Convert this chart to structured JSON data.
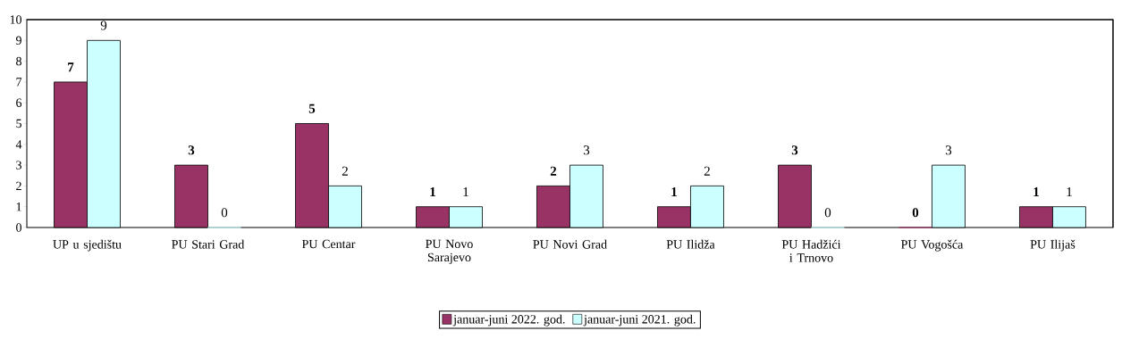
{
  "chart_data": {
    "type": "bar",
    "categories": [
      "UP u sjedištu",
      "PU Stari Grad",
      "PU Centar",
      "PU Novo Sarajevo",
      "PU Novi Grad",
      "PU Ilidža",
      "PU Hadžići i Trnovo",
      "PU Vogošća",
      "PU Ilijaš"
    ],
    "series": [
      {
        "name": "januar-juni 2022. god.",
        "color": "#993366",
        "values": [
          7,
          3,
          5,
          1,
          2,
          1,
          3,
          0,
          1
        ]
      },
      {
        "name": "januar-juni 2021. god.",
        "color": "#ccffff",
        "values": [
          9,
          0,
          2,
          1,
          3,
          2,
          0,
          3,
          1
        ]
      }
    ],
    "ylim": [
      0,
      10
    ],
    "yticks": [
      0,
      1,
      2,
      3,
      4,
      5,
      6,
      7,
      8,
      9,
      10
    ],
    "data_labels": true,
    "legend": "bottom",
    "grid": false
  }
}
